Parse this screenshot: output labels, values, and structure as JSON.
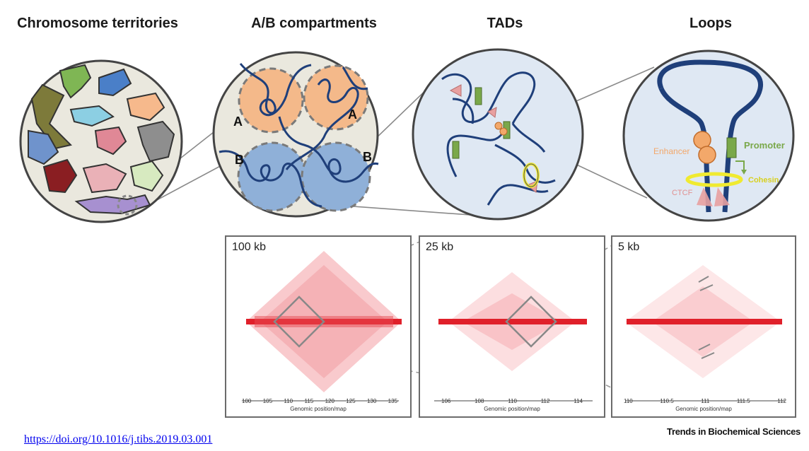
{
  "headings": {
    "territories": "Chromosome territories",
    "compartments": "A/B compartments",
    "tads": "TADs",
    "loops": "Loops"
  },
  "compartment_labels": {
    "a": "A",
    "b": "B"
  },
  "loop_labels": {
    "enhancer": "Enhancer",
    "promoter": "Promoter",
    "cohesin": "Cohesin",
    "ctcf": "CTCF"
  },
  "heatmaps": [
    {
      "resolution": "100 kb",
      "ticks": [
        "100",
        "105",
        "110",
        "115",
        "120",
        "125",
        "130",
        "135"
      ],
      "xlabel": "Genomic position/map"
    },
    {
      "resolution": "25 kb",
      "ticks": [
        "106",
        "108",
        "110",
        "112",
        "114"
      ],
      "xlabel": "Genomic position/map"
    },
    {
      "resolution": "5 kb",
      "ticks": [
        "110",
        "110.5",
        "111",
        "111.5",
        "112"
      ],
      "xlabel": "Genomic position/map"
    }
  ],
  "footer": {
    "doi": "https://doi.org/10.1016/j.tibs.2019.03.001",
    "journal": "Trends in Biochemical Sciences"
  },
  "colors": {
    "chromatin": "#1f3f7a",
    "compartment_a": "#f4b98a",
    "compartment_b": "#8fb0d8",
    "circle_bg_1": "#eae8de",
    "circle_bg_2": "#dfe8f3",
    "heatmap": "#e0202a",
    "cohesin": "#f0ea30",
    "promoter": "#7aa84a",
    "enhancer": "#f3a86a",
    "ctcf": "#e8a0a0"
  }
}
